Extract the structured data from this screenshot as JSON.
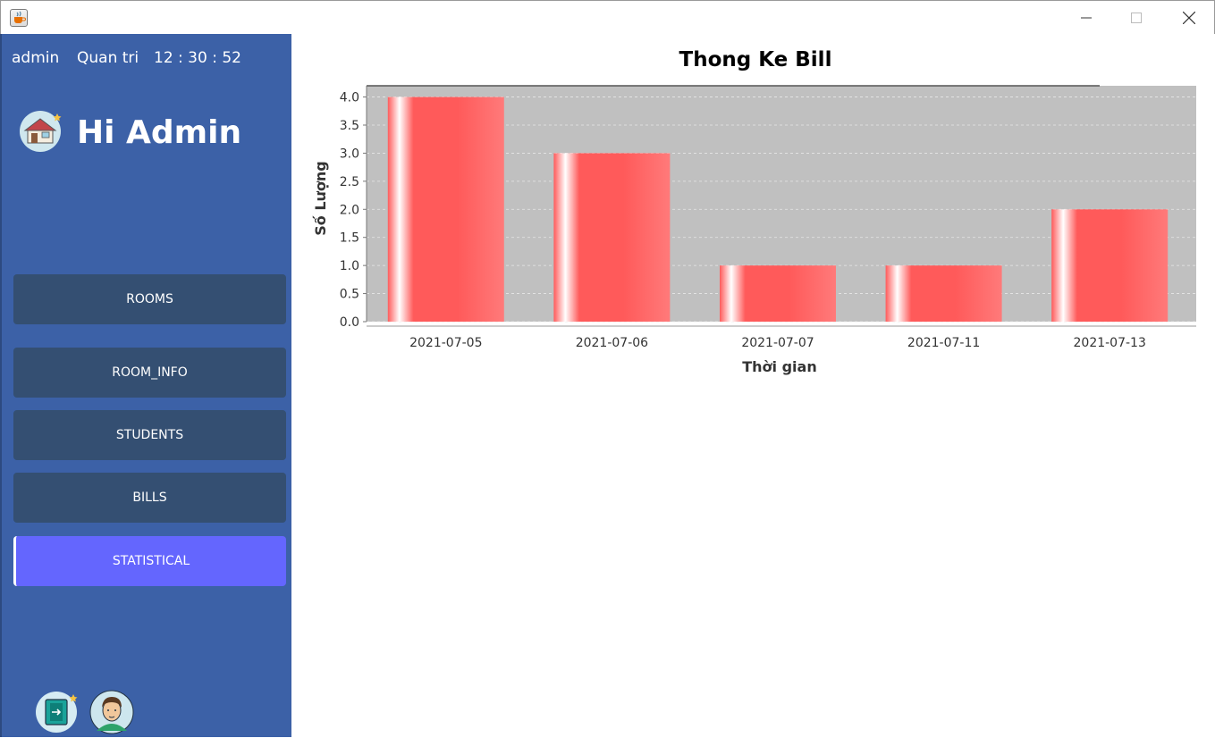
{
  "window": {
    "title": "",
    "icon": "java-cup-icon"
  },
  "sidebar": {
    "username": "admin",
    "role": "Quan tri",
    "clock": "12 : 30 : 52",
    "greeting": "Hi Admin",
    "nav": [
      {
        "label": "ROOMS",
        "active": false
      },
      {
        "label": "ROOM_INFO",
        "active": false
      },
      {
        "label": "STUDENTS",
        "active": false
      },
      {
        "label": "BILLS",
        "active": false
      },
      {
        "label": "STATISTICAL",
        "active": true
      }
    ],
    "colors": {
      "background": "#3c61a7",
      "button": "#344f72",
      "active": "#6466fe"
    }
  },
  "chart_data": {
    "type": "bar",
    "title": "Thong Ke Bill",
    "xlabel": "Thời gian",
    "ylabel": "Số Lượng",
    "categories": [
      "2021-07-05",
      "2021-07-06",
      "2021-07-07",
      "2021-07-11",
      "2021-07-13"
    ],
    "values": [
      4,
      3,
      1,
      1,
      2
    ],
    "ylim": [
      0,
      4.2
    ],
    "yticks": [
      "0.0",
      "0.5",
      "1.0",
      "1.5",
      "2.0",
      "2.5",
      "3.0",
      "3.5",
      "4.0"
    ],
    "grid": true,
    "bar_color": "#ff5a5a",
    "plot_background": "#c0c0c0"
  }
}
